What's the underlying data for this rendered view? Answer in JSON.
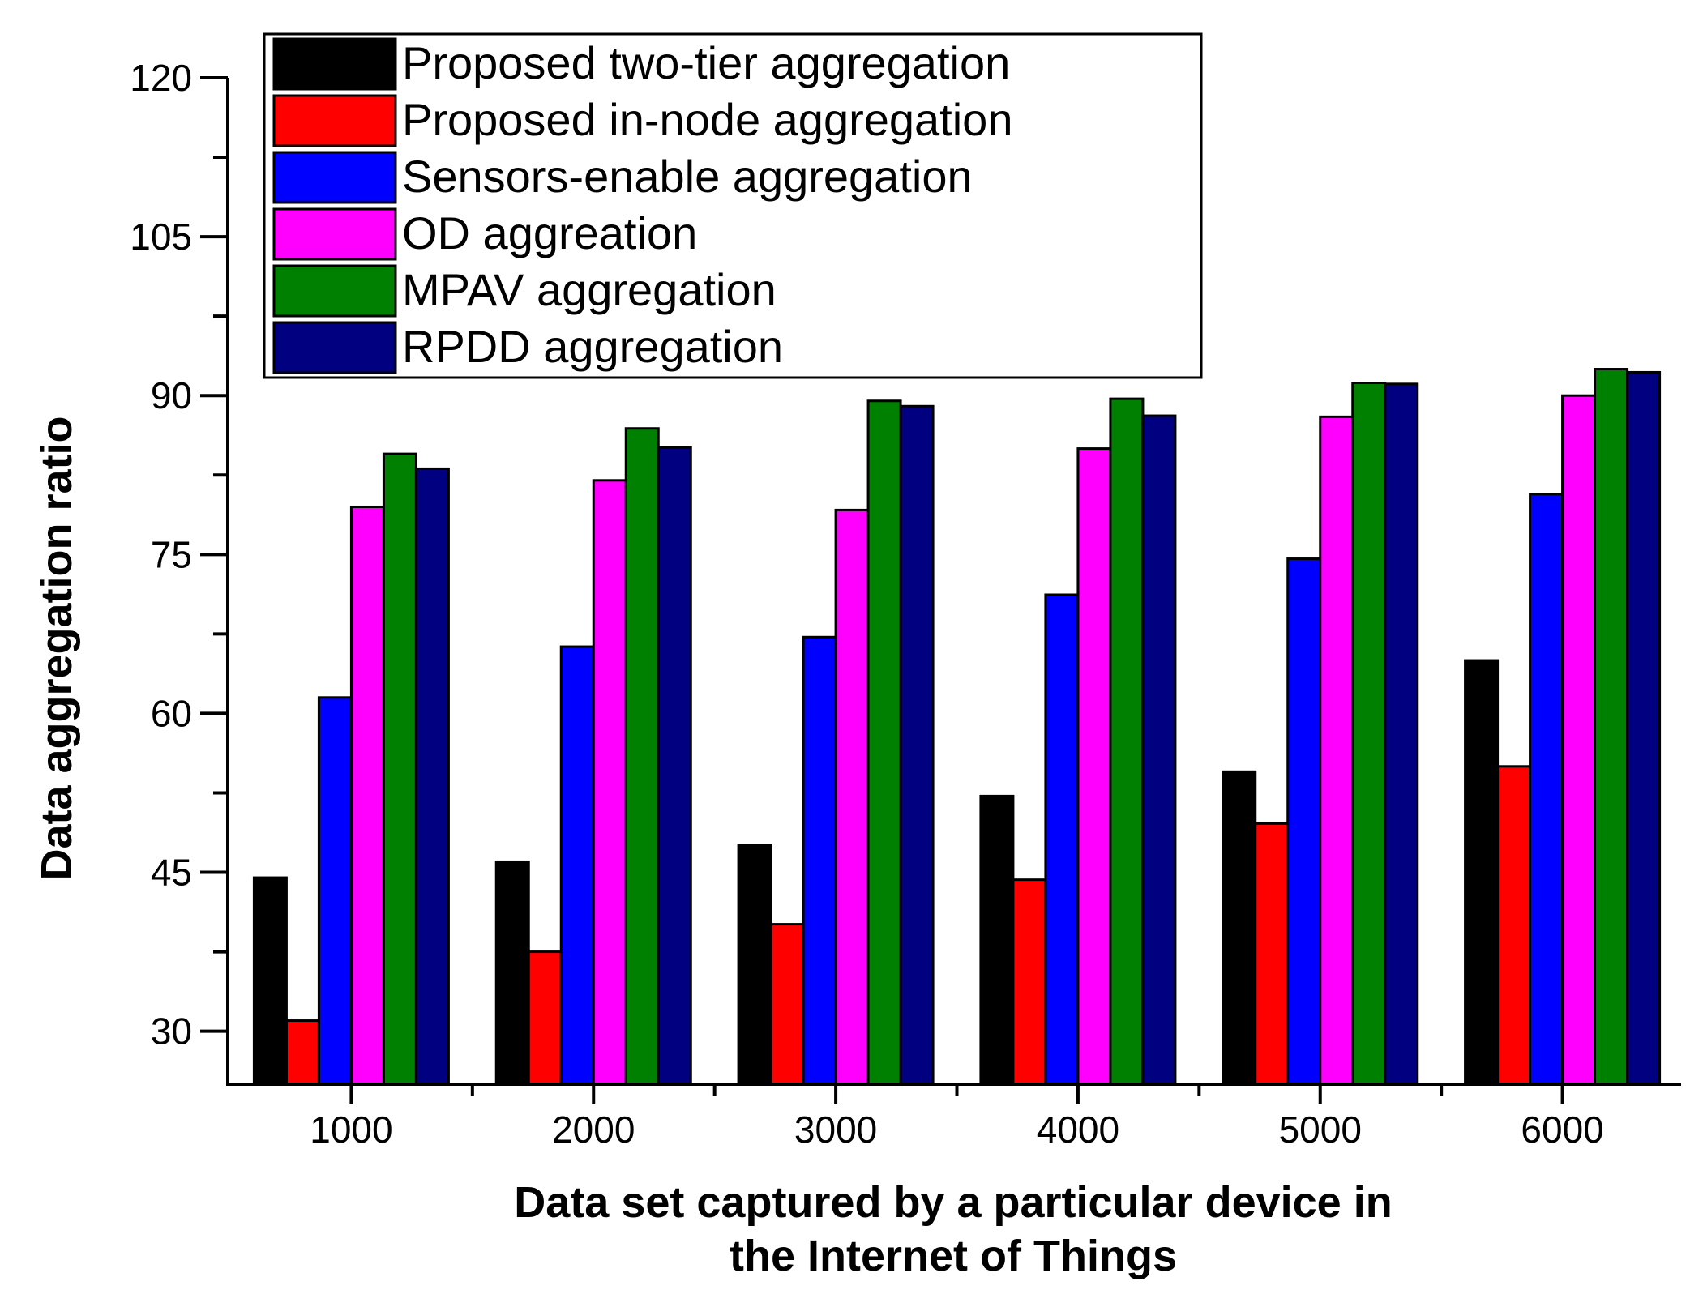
{
  "chart_data": {
    "type": "bar",
    "title": "",
    "xlabel_lines": [
      "Data set captured by a particular device in",
      "the Internet of Things"
    ],
    "ylabel": "Data aggregation ratio",
    "categories": [
      "1000",
      "2000",
      "3000",
      "4000",
      "5000",
      "6000"
    ],
    "ylim": [
      25,
      120
    ],
    "yticks": [
      30,
      45,
      60,
      75,
      90,
      105,
      120
    ],
    "grid": false,
    "legend_position": "top-left",
    "series": [
      {
        "name": "Proposed two-tier aggregation",
        "color": "#000000",
        "values": [
          44.5,
          46,
          47.6,
          52.2,
          54.5,
          65
        ]
      },
      {
        "name": "Proposed in-node aggregation",
        "color": "#ff0000",
        "values": [
          31,
          37.5,
          40.1,
          44.3,
          49.6,
          55
        ]
      },
      {
        "name": "Sensors-enable aggregation",
        "color": "#0000ff",
        "values": [
          61.5,
          66.3,
          67.2,
          71.2,
          74.6,
          80.7
        ]
      },
      {
        "name": "OD aggreation",
        "color": "#ff00ff",
        "values": [
          79.5,
          82,
          79.2,
          85,
          88,
          90
        ]
      },
      {
        "name": "MPAV aggregation",
        "color": "#008000",
        "values": [
          84.5,
          86.9,
          89.5,
          89.7,
          91.2,
          92.5
        ]
      },
      {
        "name": "RPDD aggregation",
        "color": "#000080",
        "values": [
          83.1,
          85.1,
          89,
          88.1,
          91.1,
          92.2
        ]
      }
    ]
  }
}
